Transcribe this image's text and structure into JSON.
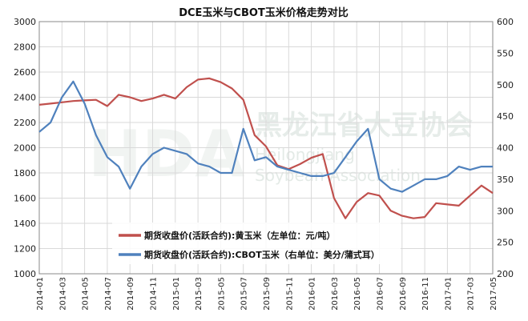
{
  "chart_data": {
    "type": "line",
    "title": "DCE玉米与CBOT玉米价格走势对比",
    "y_left": {
      "min": 1000,
      "max": 3000,
      "step": 200,
      "ticks": [
        "1000",
        "1200",
        "1400",
        "1600",
        "1800",
        "2000",
        "2200",
        "2400",
        "2600",
        "2800",
        "3000"
      ]
    },
    "y_right": {
      "min": 200,
      "max": 600,
      "step": 50,
      "ticks": [
        "200",
        "250",
        "300",
        "350",
        "400",
        "450",
        "500",
        "550",
        "600"
      ]
    },
    "x_range": [
      "2014-01",
      "2017-05"
    ],
    "x_ticks": [
      "2014-01",
      "2014-03",
      "2014-05",
      "2014-07",
      "2014-09",
      "2014-11",
      "2015-01",
      "2015-03",
      "2015-05",
      "2015-07",
      "2015-09",
      "2015-11",
      "2016-01",
      "2016-03",
      "2016-05",
      "2016-07",
      "2016-09",
      "2016-11",
      "2017-01",
      "2017-03",
      "2017-05"
    ],
    "grid": true,
    "legend_position": "bottom-left",
    "watermark": {
      "cn": "黑龙江省大豆协会",
      "en1": "Heilongjiang",
      "en2": "Soybean Association",
      "logo": "HDA"
    },
    "series": [
      {
        "name": "期货收盘价(活跃合约):黄玉米（左单位：元/吨）",
        "axis": "left",
        "color": "#c0504d",
        "x": [
          "2014-01",
          "2014-02",
          "2014-03",
          "2014-04",
          "2014-05",
          "2014-06",
          "2014-07",
          "2014-08",
          "2014-09",
          "2014-10",
          "2014-11",
          "2014-12",
          "2015-01",
          "2015-02",
          "2015-03",
          "2015-04",
          "2015-05",
          "2015-06",
          "2015-07",
          "2015-08",
          "2015-09",
          "2015-10",
          "2015-11",
          "2015-12",
          "2016-01",
          "2016-02",
          "2016-03",
          "2016-04",
          "2016-05",
          "2016-06",
          "2016-07",
          "2016-08",
          "2016-09",
          "2016-10",
          "2016-11",
          "2016-12",
          "2017-01",
          "2017-02",
          "2017-03",
          "2017-04",
          "2017-05"
        ],
        "values": [
          2340,
          2350,
          2360,
          2370,
          2375,
          2380,
          2330,
          2420,
          2400,
          2370,
          2390,
          2420,
          2390,
          2480,
          2540,
          2550,
          2520,
          2470,
          2380,
          2100,
          2010,
          1860,
          1830,
          1870,
          1920,
          1950,
          1600,
          1440,
          1570,
          1640,
          1620,
          1500,
          1460,
          1440,
          1450,
          1560,
          1550,
          1540,
          1620,
          1700,
          1640
        ]
      },
      {
        "name": "期货收盘价(活跃合约):CBOT玉米（右单位：美分/蒲式耳）",
        "axis": "right",
        "color": "#4f81bd",
        "x": [
          "2014-01",
          "2014-02",
          "2014-03",
          "2014-04",
          "2014-05",
          "2014-06",
          "2014-07",
          "2014-08",
          "2014-09",
          "2014-10",
          "2014-11",
          "2014-12",
          "2015-01",
          "2015-02",
          "2015-03",
          "2015-04",
          "2015-05",
          "2015-06",
          "2015-07",
          "2015-08",
          "2015-09",
          "2015-10",
          "2015-11",
          "2015-12",
          "2016-01",
          "2016-02",
          "2016-03",
          "2016-04",
          "2016-05",
          "2016-06",
          "2016-07",
          "2016-08",
          "2016-09",
          "2016-10",
          "2016-11",
          "2016-12",
          "2017-01",
          "2017-02",
          "2017-03",
          "2017-04",
          "2017-05"
        ],
        "values": [
          425,
          440,
          480,
          505,
          470,
          420,
          385,
          370,
          335,
          370,
          390,
          400,
          395,
          390,
          375,
          370,
          360,
          360,
          430,
          380,
          385,
          370,
          365,
          360,
          355,
          355,
          360,
          385,
          410,
          430,
          350,
          335,
          330,
          340,
          350,
          350,
          355,
          370,
          365,
          370,
          370
        ]
      }
    ]
  }
}
